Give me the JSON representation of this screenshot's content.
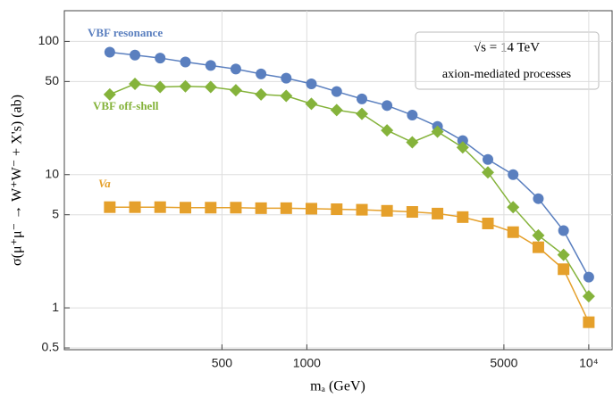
{
  "chart_data": {
    "type": "line",
    "log_x": true,
    "log_y": true,
    "grid": true,
    "xlabel": "mₐ (GeV)",
    "ylabel": "σ(μ⁺μ⁻ → W⁺W⁻ + X's) (ab)",
    "annotations": [
      "√s = 14 TeV",
      "axion-mediated processes"
    ],
    "x": [
      200,
      245.7,
      301.8,
      371,
      456,
      560,
      688,
      845,
      1038,
      1276,
      1568,
      1925,
      2366,
      2907,
      3572,
      4388,
      5391,
      6624,
      8139,
      10000
    ],
    "series": [
      {
        "name": "VBF resonance",
        "color": "#5a7fbf",
        "marker": "circle",
        "values": [
          83,
          79,
          75,
          70,
          66,
          62,
          57,
          53,
          48,
          42,
          37,
          33,
          28,
          23,
          18,
          13,
          10,
          6.6,
          3.8,
          1.7
        ]
      },
      {
        "name": "VBF off-shell",
        "color": "#85b33b",
        "marker": "diamond",
        "values": [
          40,
          48,
          45.5,
          46,
          45.5,
          43,
          40,
          39,
          34,
          30.5,
          28.6,
          21.5,
          17.5,
          21,
          16,
          10.4,
          5.7,
          3.5,
          2.5,
          1.22
        ]
      },
      {
        "name": "Va",
        "color": "#e5a02b",
        "marker": "square",
        "values": [
          5.7,
          5.7,
          5.7,
          5.65,
          5.65,
          5.65,
          5.6,
          5.6,
          5.55,
          5.5,
          5.45,
          5.35,
          5.25,
          5.1,
          4.8,
          4.3,
          3.7,
          2.85,
          1.95,
          0.78
        ]
      }
    ],
    "xlim": [
      138,
      12100
    ],
    "ylim": [
      0.485,
      170
    ],
    "xticks": [
      500,
      1000,
      5000,
      {
        "value": 10000,
        "label": "10⁴"
      }
    ],
    "yticks": [
      0.5,
      1,
      5,
      10,
      50,
      100
    ]
  }
}
